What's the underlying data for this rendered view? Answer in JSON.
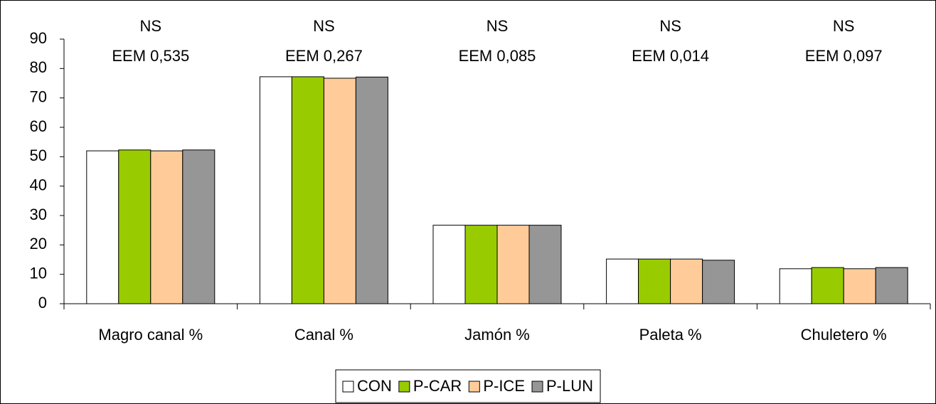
{
  "chart_data": {
    "type": "bar",
    "categories": [
      "Magro canal %",
      "Canal %",
      "Jamón %",
      "Paleta %",
      "Chuletero %"
    ],
    "series": [
      {
        "name": "CON",
        "color": "#ffffff",
        "values": [
          52,
          77.2,
          26.7,
          15.2,
          11.9
        ]
      },
      {
        "name": "P-CAR",
        "color": "#99cc00",
        "values": [
          52.3,
          77.2,
          26.7,
          15.2,
          12.3
        ]
      },
      {
        "name": "P-ICE",
        "color": "#ffcc99",
        "values": [
          52,
          76.7,
          26.7,
          15.2,
          11.9
        ]
      },
      {
        "name": "P-LUN",
        "color": "#969696",
        "values": [
          52.3,
          77.1,
          26.7,
          14.8,
          12.3
        ]
      }
    ],
    "annotations": [
      [
        "NS",
        "EEM 0,535"
      ],
      [
        "NS",
        "EEM 0,267"
      ],
      [
        "NS",
        "EEM 0,085"
      ],
      [
        "NS",
        "EEM 0,014"
      ],
      [
        "NS",
        "EEM 0,097"
      ]
    ],
    "ylim": [
      0,
      90
    ],
    "yticks": [
      0,
      10,
      20,
      30,
      40,
      50,
      60,
      70,
      80,
      90
    ],
    "legend": "bottom"
  }
}
